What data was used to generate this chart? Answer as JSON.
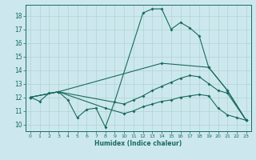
{
  "xlabel": "Humidex (Indice chaleur)",
  "background_color": "#cce8ee",
  "grid_color": "#b0d4cc",
  "line_color": "#1a6b5a",
  "xlim": [
    -0.5,
    23.5
  ],
  "ylim": [
    9.5,
    18.8
  ],
  "xticks": [
    0,
    1,
    2,
    3,
    4,
    5,
    6,
    7,
    8,
    9,
    10,
    11,
    12,
    13,
    14,
    15,
    16,
    17,
    18,
    19,
    20,
    21,
    22,
    23
  ],
  "yticks": [
    10,
    11,
    12,
    13,
    14,
    15,
    16,
    17,
    18
  ],
  "line1": {
    "x": [
      0,
      1,
      2,
      3,
      4,
      5,
      6,
      7,
      8,
      9,
      12,
      13,
      14,
      15,
      16,
      17,
      18,
      19,
      21,
      23
    ],
    "y": [
      12.0,
      11.7,
      12.3,
      12.4,
      11.8,
      10.5,
      11.1,
      11.2,
      9.8,
      11.7,
      18.2,
      18.5,
      18.5,
      17.0,
      17.5,
      17.1,
      16.5,
      14.2,
      12.5,
      10.3
    ]
  },
  "line2": {
    "x": [
      0,
      3,
      14,
      19,
      21,
      23
    ],
    "y": [
      12.0,
      12.4,
      14.5,
      14.2,
      12.5,
      10.3
    ]
  },
  "line3": {
    "x": [
      0,
      3,
      10,
      11,
      12,
      13,
      14,
      15,
      16,
      17,
      18,
      19,
      20,
      21,
      23
    ],
    "y": [
      12.0,
      12.4,
      11.5,
      11.8,
      12.1,
      12.5,
      12.8,
      13.1,
      13.4,
      13.6,
      13.5,
      13.0,
      12.5,
      12.3,
      10.3
    ]
  },
  "line4": {
    "x": [
      0,
      3,
      8,
      10,
      11,
      12,
      13,
      14,
      15,
      16,
      17,
      18,
      19,
      20,
      21,
      22,
      23
    ],
    "y": [
      12.0,
      12.4,
      11.2,
      10.8,
      11.0,
      11.3,
      11.5,
      11.7,
      11.8,
      12.0,
      12.1,
      12.2,
      12.1,
      11.2,
      10.7,
      10.5,
      10.3
    ]
  }
}
